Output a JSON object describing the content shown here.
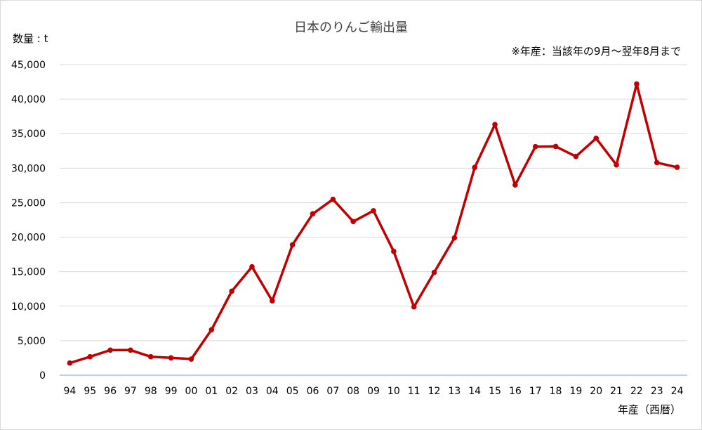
{
  "chart": {
    "title": "日本のりんご輸出量",
    "ylabel": "数量 : t",
    "note": "※年産：当該年の9月～翌年8月まで",
    "xlabel": "年産（西暦）"
  },
  "colors": {
    "line": "#C00000",
    "grid": "#D9D9D9",
    "axis": "#9DC3E6"
  },
  "chart_data": {
    "type": "line",
    "title": "日本のりんご輸出量",
    "xlabel": "年産（西暦）",
    "ylabel": "数量 : t",
    "annotations": [
      "※年産：当該年の9月～翌年8月まで"
    ],
    "categories": [
      "94",
      "95",
      "96",
      "97",
      "98",
      "99",
      "00",
      "01",
      "02",
      "03",
      "04",
      "05",
      "06",
      "07",
      "08",
      "09",
      "10",
      "11",
      "12",
      "13",
      "14",
      "15",
      "16",
      "17",
      "18",
      "19",
      "20",
      "21",
      "22",
      "23",
      "24"
    ],
    "series": [
      {
        "name": "日本のりんご輸出量",
        "values": [
          1760,
          2680,
          3630,
          3630,
          2680,
          2510,
          2340,
          6590,
          12170,
          15710,
          10770,
          18890,
          23380,
          25480,
          22270,
          23830,
          17950,
          9900,
          14900,
          19900,
          30100,
          36320,
          27570,
          33120,
          33150,
          31690,
          34330,
          30470,
          42190,
          30810,
          30130
        ]
      }
    ],
    "ylim": [
      0,
      45000
    ],
    "yticks": [
      0,
      5000,
      10000,
      15000,
      20000,
      25000,
      30000,
      35000,
      40000,
      45000
    ],
    "ytick_labels": [
      "0",
      "5,000",
      "10,000",
      "15,000",
      "20,000",
      "25,000",
      "30,000",
      "35,000",
      "40,000",
      "45,000"
    ],
    "grid": true,
    "legend": "none",
    "markers": true
  }
}
